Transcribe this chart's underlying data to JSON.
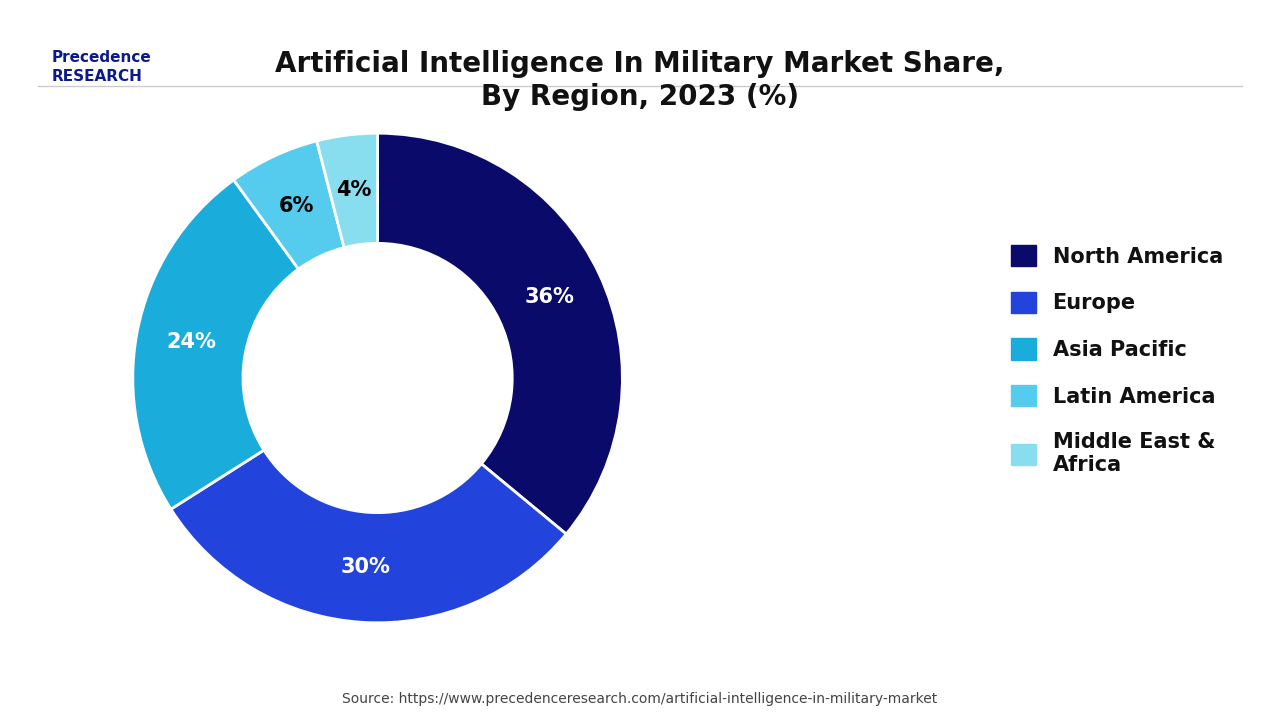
{
  "title": "Artificial Intelligence In Military Market Share,\nBy Region, 2023 (%)",
  "regions": [
    "North America",
    "Europe",
    "Asia Pacific",
    "Latin America",
    "Middle East &\nAfrica"
  ],
  "values": [
    36,
    30,
    24,
    6,
    4
  ],
  "colors": [
    "#0a0a6b",
    "#2244dd",
    "#1aaddc",
    "#55ccee",
    "#88ddee"
  ],
  "pct_labels": [
    "36%",
    "30%",
    "24%",
    "6%",
    "4%"
  ],
  "label_colors": [
    "white",
    "white",
    "white",
    "black",
    "black"
  ],
  "source": "Source: https://www.precedenceresearch.com/artificial-intelligence-in-military-market",
  "background_color": "#ffffff",
  "title_fontsize": 20,
  "legend_fontsize": 15
}
